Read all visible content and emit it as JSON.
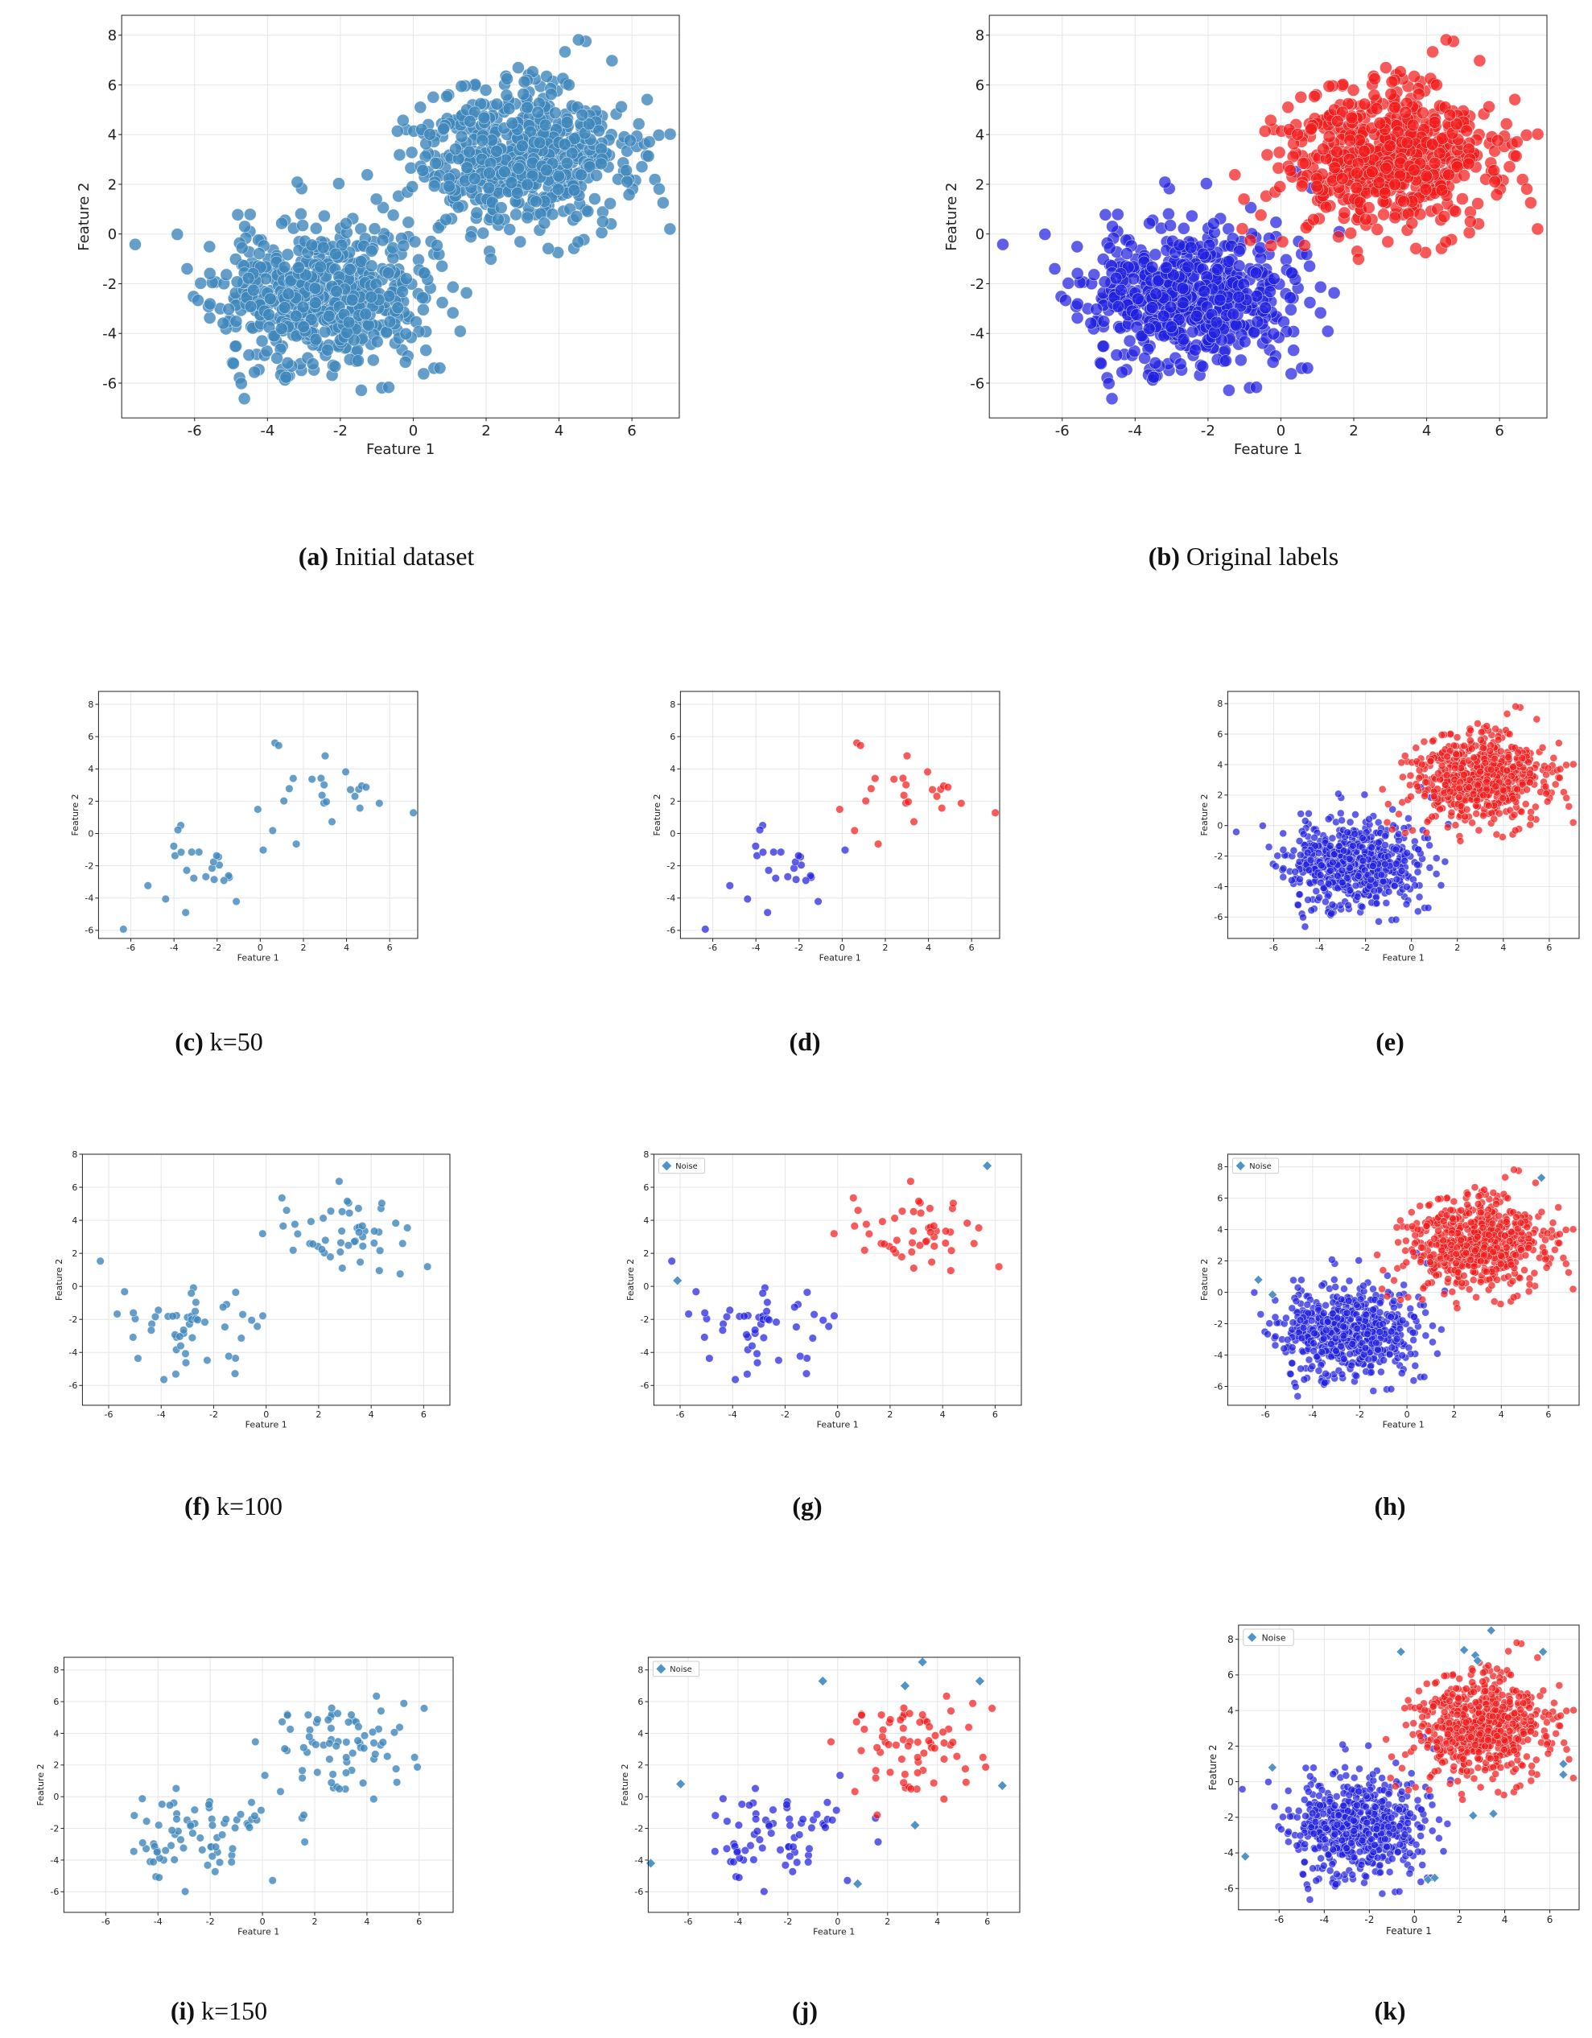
{
  "colors": {
    "steel": "#3f87bc",
    "red": "#f21a1a",
    "blue": "#2020e0",
    "noise": "#4f93c7",
    "grid": "#e6e6e6",
    "axis": "#222222"
  },
  "chart_data": [
    {
      "id": "a",
      "type": "scatter",
      "caption_letter": "(a)",
      "caption_text": "Initial dataset",
      "xlabel": "Feature 1",
      "ylabel": "Feature 2",
      "xlim": [
        -8,
        7.3
      ],
      "ylim": [
        -7.4,
        8.8
      ],
      "xticks": [
        "-6",
        "-4",
        "-2",
        "0",
        "2",
        "4",
        "6"
      ],
      "xtick_values": [
        -6,
        -4,
        -2,
        0,
        2,
        4,
        6
      ],
      "yticks": [
        "-6",
        "-4",
        "-2",
        "0",
        "2",
        "4",
        "6",
        "8"
      ],
      "ytick_values": [
        -6,
        -4,
        -2,
        0,
        2,
        4,
        6,
        8
      ],
      "grid": true,
      "coloring": "single",
      "clusters": [
        {
          "n": 600,
          "cx": -2.6,
          "cy": -2.5,
          "sd": 1.45,
          "seed": 11
        },
        {
          "n": 600,
          "cx": 2.9,
          "cy": 3.0,
          "sd": 1.45,
          "seed": 23
        }
      ],
      "legend": null
    },
    {
      "id": "b",
      "type": "scatter",
      "caption_letter": "(b)",
      "caption_text": "Original labels",
      "xlabel": "Feature 1",
      "ylabel": "Feature 2",
      "xlim": [
        -8,
        7.3
      ],
      "ylim": [
        -7.4,
        8.8
      ],
      "xticks": [
        "-6",
        "-4",
        "-2",
        "0",
        "2",
        "4",
        "6"
      ],
      "xtick_values": [
        -6,
        -4,
        -2,
        0,
        2,
        4,
        6
      ],
      "yticks": [
        "-6",
        "-4",
        "-2",
        "0",
        "2",
        "4",
        "6",
        "8"
      ],
      "ytick_values": [
        -6,
        -4,
        -2,
        0,
        2,
        4,
        6,
        8
      ],
      "grid": true,
      "coloring": "labels",
      "clusters": [
        {
          "n": 600,
          "cx": -2.6,
          "cy": -2.5,
          "sd": 1.45,
          "seed": 11,
          "label": "blue"
        },
        {
          "n": 600,
          "cx": 2.9,
          "cy": 3.0,
          "sd": 1.45,
          "seed": 23,
          "label": "red"
        }
      ],
      "legend": null
    },
    {
      "id": "c",
      "type": "scatter",
      "caption_letter": "(c)",
      "caption_text": "k=50",
      "xlabel": "Feature 1",
      "ylabel": "Feature 2",
      "xlim": [
        -7.5,
        7.3
      ],
      "ylim": [
        -6.5,
        8.8
      ],
      "xticks": [
        "-6",
        "-4",
        "-2",
        "0",
        "2",
        "4",
        "6"
      ],
      "xtick_values": [
        -6,
        -4,
        -2,
        0,
        2,
        4,
        6
      ],
      "yticks": [
        "-6",
        "-4",
        "-2",
        "0",
        "2",
        "4",
        "6",
        "8"
      ],
      "ytick_values": [
        -6,
        -4,
        -2,
        0,
        2,
        4,
        6,
        8
      ],
      "grid": true,
      "coloring": "single",
      "clusters": [
        {
          "n": 25,
          "cx": -2.6,
          "cy": -2.5,
          "sd": 1.45,
          "seed": 31
        },
        {
          "n": 25,
          "cx": 2.9,
          "cy": 3.0,
          "sd": 1.45,
          "seed": 37
        }
      ],
      "legend": null
    },
    {
      "id": "d",
      "type": "scatter",
      "caption_letter": "(d)",
      "caption_text": "",
      "xlabel": "Feature 1",
      "ylabel": "Feature 2",
      "xlim": [
        -7.5,
        7.3
      ],
      "ylim": [
        -6.5,
        8.8
      ],
      "xticks": [
        "-6",
        "-4",
        "-2",
        "0",
        "2",
        "4",
        "6"
      ],
      "xtick_values": [
        -6,
        -4,
        -2,
        0,
        2,
        4,
        6
      ],
      "yticks": [
        "-6",
        "-4",
        "-2",
        "0",
        "2",
        "4",
        "6",
        "8"
      ],
      "ytick_values": [
        -6,
        -4,
        -2,
        0,
        2,
        4,
        6,
        8
      ],
      "grid": true,
      "coloring": "labels",
      "clusters": [
        {
          "n": 25,
          "cx": -2.6,
          "cy": -2.5,
          "sd": 1.45,
          "seed": 31,
          "label": "blue"
        },
        {
          "n": 25,
          "cx": 2.9,
          "cy": 3.0,
          "sd": 1.45,
          "seed": 37,
          "label": "red"
        }
      ],
      "legend": null
    },
    {
      "id": "e",
      "type": "scatter",
      "caption_letter": "(e)",
      "caption_text": "",
      "xlabel": "Feature 1",
      "ylabel": "Feature 2",
      "xlim": [
        -8,
        7.3
      ],
      "ylim": [
        -7.4,
        8.8
      ],
      "xticks": [
        "-6",
        "-4",
        "-2",
        "0",
        "2",
        "4",
        "6"
      ],
      "xtick_values": [
        -6,
        -4,
        -2,
        0,
        2,
        4,
        6
      ],
      "yticks": [
        "-6",
        "-4",
        "-2",
        "0",
        "2",
        "4",
        "6",
        "8"
      ],
      "ytick_values": [
        -6,
        -4,
        -2,
        0,
        2,
        4,
        6,
        8
      ],
      "grid": true,
      "coloring": "labels",
      "clusters": [
        {
          "n": 600,
          "cx": -2.6,
          "cy": -2.5,
          "sd": 1.45,
          "seed": 11,
          "label": "blue"
        },
        {
          "n": 600,
          "cx": 2.9,
          "cy": 3.0,
          "sd": 1.45,
          "seed": 23,
          "label": "red"
        }
      ],
      "legend": null
    },
    {
      "id": "f",
      "type": "scatter",
      "caption_letter": "(f)",
      "caption_text": "k=100",
      "xlabel": "Feature 1",
      "ylabel": "Feature 2",
      "xlim": [
        -7.0,
        7.0
      ],
      "ylim": [
        -7.2,
        8.0
      ],
      "xticks": [
        "-6",
        "-4",
        "-2",
        "0",
        "2",
        "4",
        "6"
      ],
      "xtick_values": [
        -6,
        -4,
        -2,
        0,
        2,
        4,
        6
      ],
      "yticks": [
        "-6",
        "-4",
        "-2",
        "0",
        "2",
        "4",
        "6",
        "8"
      ],
      "ytick_values": [
        -6,
        -4,
        -2,
        0,
        2,
        4,
        6,
        8
      ],
      "grid": true,
      "coloring": "single",
      "clusters": [
        {
          "n": 50,
          "cx": -2.6,
          "cy": -2.5,
          "sd": 1.45,
          "seed": 41
        },
        {
          "n": 50,
          "cx": 2.9,
          "cy": 3.0,
          "sd": 1.45,
          "seed": 43
        }
      ],
      "legend": null
    },
    {
      "id": "g",
      "type": "scatter",
      "caption_letter": "(g)",
      "caption_text": "",
      "xlabel": "Feature 1",
      "ylabel": "Feature 2",
      "xlim": [
        -7.0,
        7.0
      ],
      "ylim": [
        -7.2,
        8.0
      ],
      "xticks": [
        "-6",
        "-4",
        "-2",
        "0",
        "2",
        "4",
        "6"
      ],
      "xtick_values": [
        -6,
        -4,
        -2,
        0,
        2,
        4,
        6
      ],
      "yticks": [
        "-6",
        "-4",
        "-2",
        "0",
        "2",
        "4",
        "6",
        "8"
      ],
      "ytick_values": [
        -6,
        -4,
        -2,
        0,
        2,
        4,
        6,
        8
      ],
      "grid": true,
      "coloring": "labels",
      "clusters": [
        {
          "n": 49,
          "cx": -2.6,
          "cy": -2.5,
          "sd": 1.45,
          "seed": 41,
          "label": "blue"
        },
        {
          "n": 49,
          "cx": 2.9,
          "cy": 3.0,
          "sd": 1.45,
          "seed": 43,
          "label": "red"
        }
      ],
      "noise_points": [
        [
          -6.1,
          0.35
        ],
        [
          5.7,
          7.3
        ]
      ],
      "legend": {
        "label": "Noise",
        "position": "top-left"
      }
    },
    {
      "id": "h",
      "type": "scatter",
      "caption_letter": "(h)",
      "caption_text": "",
      "xlabel": "Feature 1",
      "ylabel": "Feature 2",
      "xlim": [
        -7.6,
        7.3
      ],
      "ylim": [
        -7.2,
        8.8
      ],
      "xticks": [
        "-6",
        "-4",
        "-2",
        "0",
        "2",
        "4",
        "6"
      ],
      "xtick_values": [
        -6,
        -4,
        -2,
        0,
        2,
        4,
        6
      ],
      "yticks": [
        "-6",
        "-4",
        "-2",
        "0",
        "2",
        "4",
        "6",
        "8"
      ],
      "ytick_values": [
        -6,
        -4,
        -2,
        0,
        2,
        4,
        6,
        8
      ],
      "grid": true,
      "coloring": "labels",
      "clusters": [
        {
          "n": 600,
          "cx": -2.6,
          "cy": -2.5,
          "sd": 1.45,
          "seed": 11,
          "label": "blue"
        },
        {
          "n": 600,
          "cx": 2.9,
          "cy": 3.0,
          "sd": 1.45,
          "seed": 23,
          "label": "red"
        }
      ],
      "noise_points": [
        [
          -6.3,
          0.8
        ],
        [
          -5.7,
          -0.15
        ],
        [
          5.7,
          7.3
        ]
      ],
      "legend": {
        "label": "Noise",
        "position": "top-left"
      }
    },
    {
      "id": "i",
      "type": "scatter",
      "caption_letter": "(i)",
      "caption_text": "k=150",
      "xlabel": "Feature 1",
      "ylabel": "Feature 2",
      "xlim": [
        -7.6,
        7.3
      ],
      "ylim": [
        -7.3,
        8.8
      ],
      "xticks": [
        "-6",
        "-4",
        "-2",
        "0",
        "2",
        "4",
        "6"
      ],
      "xtick_values": [
        -6,
        -4,
        -2,
        0,
        2,
        4,
        6
      ],
      "yticks": [
        "-6",
        "-4",
        "-2",
        "0",
        "2",
        "4",
        "6",
        "8"
      ],
      "ytick_values": [
        -6,
        -4,
        -2,
        0,
        2,
        4,
        6,
        8
      ],
      "grid": true,
      "coloring": "single",
      "clusters": [
        {
          "n": 75,
          "cx": -2.6,
          "cy": -2.5,
          "sd": 1.45,
          "seed": 51
        },
        {
          "n": 75,
          "cx": 2.9,
          "cy": 3.0,
          "sd": 1.45,
          "seed": 53
        }
      ],
      "legend": null
    },
    {
      "id": "j",
      "type": "scatter",
      "caption_letter": "(j)",
      "caption_text": "",
      "xlabel": "Feature 1",
      "ylabel": "Feature 2",
      "xlim": [
        -7.6,
        7.3
      ],
      "ylim": [
        -7.3,
        8.8
      ],
      "xticks": [
        "-6",
        "-4",
        "-2",
        "0",
        "2",
        "4",
        "6"
      ],
      "xtick_values": [
        -6,
        -4,
        -2,
        0,
        2,
        4,
        6
      ],
      "yticks": [
        "-6",
        "-4",
        "-2",
        "0",
        "2",
        "4",
        "6",
        "8"
      ],
      "ytick_values": [
        -6,
        -4,
        -2,
        0,
        2,
        4,
        6,
        8
      ],
      "grid": true,
      "coloring": "labels",
      "clusters": [
        {
          "n": 71,
          "cx": -2.6,
          "cy": -2.5,
          "sd": 1.45,
          "seed": 51,
          "label": "blue"
        },
        {
          "n": 71,
          "cx": 2.9,
          "cy": 3.0,
          "sd": 1.45,
          "seed": 53,
          "label": "red"
        }
      ],
      "noise_points": [
        [
          -7.5,
          -4.2
        ],
        [
          -6.3,
          0.8
        ],
        [
          -0.6,
          7.3
        ],
        [
          0.8,
          -5.5
        ],
        [
          2.7,
          7.0
        ],
        [
          3.1,
          -1.8
        ],
        [
          3.4,
          8.5
        ],
        [
          5.7,
          7.3
        ],
        [
          6.6,
          0.7
        ]
      ],
      "legend": {
        "label": "Noise",
        "position": "top-left"
      }
    },
    {
      "id": "k",
      "type": "scatter",
      "caption_letter": "(k)",
      "caption_text": "",
      "xlabel": "Feature 1",
      "ylabel": "Feature 2",
      "xlim": [
        -7.8,
        7.3
      ],
      "ylim": [
        -7.2,
        8.8
      ],
      "xticks": [
        "-6",
        "-4",
        "-2",
        "0",
        "2",
        "4",
        "6"
      ],
      "xtick_values": [
        -6,
        -4,
        -2,
        0,
        2,
        4,
        6
      ],
      "yticks": [
        "-6",
        "-4",
        "-2",
        "0",
        "2",
        "4",
        "6",
        "8"
      ],
      "ytick_values": [
        -6,
        -4,
        -2,
        0,
        2,
        4,
        6,
        8
      ],
      "grid": true,
      "coloring": "labels",
      "clusters": [
        {
          "n": 600,
          "cx": -2.6,
          "cy": -2.5,
          "sd": 1.45,
          "seed": 11,
          "label": "blue"
        },
        {
          "n": 600,
          "cx": 2.9,
          "cy": 3.0,
          "sd": 1.45,
          "seed": 23,
          "label": "red"
        }
      ],
      "noise_points": [
        [
          -7.5,
          -4.2
        ],
        [
          -6.3,
          0.8
        ],
        [
          -0.6,
          7.3
        ],
        [
          0.6,
          -5.5
        ],
        [
          0.9,
          -5.4
        ],
        [
          2.2,
          7.4
        ],
        [
          2.6,
          -1.9
        ],
        [
          2.7,
          7.1
        ],
        [
          2.8,
          6.8
        ],
        [
          3.4,
          8.5
        ],
        [
          3.5,
          -1.8
        ],
        [
          5.7,
          7.3
        ],
        [
          6.6,
          1.0
        ],
        [
          6.6,
          0.4
        ]
      ],
      "legend": {
        "label": "Noise",
        "position": "top-left"
      }
    }
  ]
}
